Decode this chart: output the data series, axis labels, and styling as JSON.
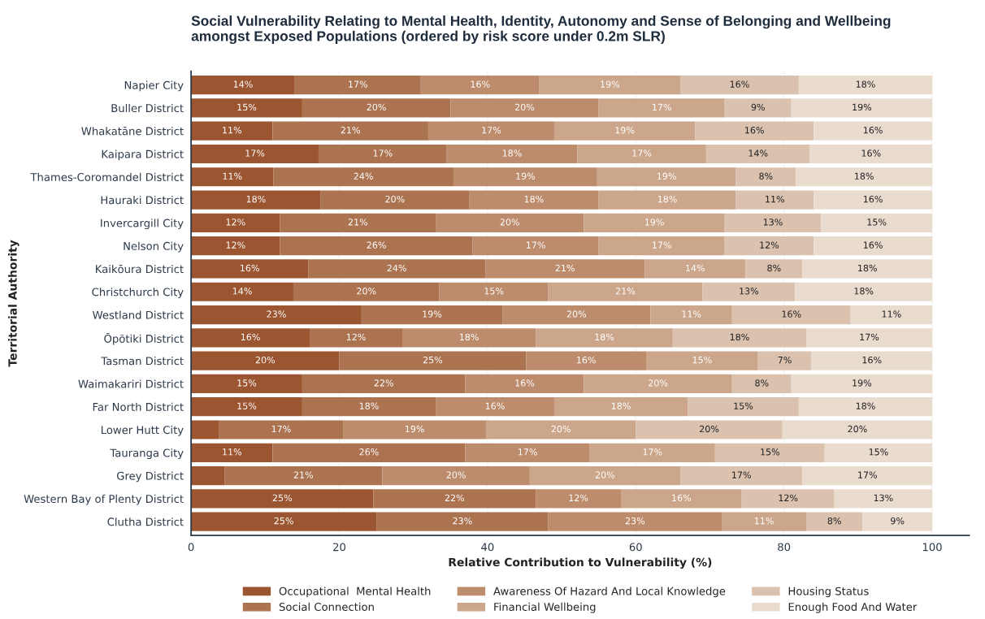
{
  "chart_data": {
    "type": "bar",
    "orientation": "horizontal",
    "stacked": true,
    "title": "Social Vulnerability Relating to Mental Health, Identity, Autonomy and Sense of Belonging and Wellbeing\namongst Exposed Populations (ordered by risk score under 0.2m SLR)",
    "xlabel": "Relative Contribution to Vulnerability (%)",
    "ylabel": "Territorial Authority",
    "categories": [
      "Napier City",
      "Buller District",
      "Whakatāne District",
      "Kaipara District",
      "Thames-Coromandel District",
      "Hauraki District",
      "Invercargill City",
      "Nelson City",
      "Kaikōura District",
      "Christchurch City",
      "Westland District",
      "Ōpōtiki District",
      "Tasman District",
      "Waimakariri District",
      "Far North District",
      "Lower Hutt City",
      "Tauranga City",
      "Grey District",
      "Western Bay of Plenty District",
      "Clutha District"
    ],
    "xlim": [
      0,
      105
    ],
    "xticks": [
      0,
      20,
      40,
      60,
      80,
      100
    ],
    "grid": "x",
    "legend": "bottom",
    "series": [
      {
        "name": "Occupational  Mental Health",
        "color": "#9b5530",
        "values": [
          14,
          15,
          11,
          17.2,
          11.1,
          17.5,
          12,
          12,
          15.8,
          13.8,
          23,
          16,
          20,
          15,
          15,
          3.8,
          11,
          4.5,
          24.6,
          25
        ],
        "value_labels": [
          "14%",
          "15%",
          "11%",
          "17%",
          "11%",
          "18%",
          "12%",
          "12%",
          "16%",
          "14%",
          "23%",
          "16%",
          "20%",
          "15%",
          "15%",
          null,
          "11%",
          null,
          "25%",
          "25%"
        ]
      },
      {
        "name": "Social Connection",
        "color": "#ac7350",
        "values": [
          17,
          20,
          21,
          17.3,
          24.3,
          20,
          21,
          26,
          23.9,
          19.7,
          19,
          12.5,
          25.2,
          22,
          18,
          16.7,
          26,
          21.3,
          21.9,
          23.2
        ],
        "value_labels": [
          "17%",
          "20%",
          "21%",
          "17%",
          "24%",
          "20%",
          "21%",
          "26%",
          "24%",
          "20%",
          "19%",
          "12%",
          "25%",
          "22%",
          "18%",
          "17%",
          "26%",
          "21%",
          "22%",
          "23%"
        ]
      },
      {
        "name": "Awareness Of Hazard And Local Knowledge",
        "color": "#bd8c6c",
        "values": [
          16,
          20,
          17,
          17.6,
          19.4,
          17.5,
          20,
          17,
          21.5,
          14.7,
          20,
          18,
          16.2,
          16,
          16,
          19.3,
          16.8,
          19.9,
          11.5,
          23.4
        ],
        "value_labels": [
          "16%",
          "20%",
          "17%",
          "18%",
          "19%",
          "18%",
          "20%",
          "17%",
          "21%",
          "15%",
          "20%",
          "18%",
          "16%",
          "16%",
          "16%",
          "19%",
          "17%",
          "20%",
          "12%",
          "23%"
        ]
      },
      {
        "name": "Financial Wellbeing",
        "color": "#cca68a",
        "values": [
          19,
          17,
          19,
          17.4,
          18.7,
          18.5,
          19,
          17,
          13.6,
          20.8,
          11,
          18.5,
          15.1,
          20,
          18,
          20.2,
          16.9,
          20.3,
          16.3,
          11.4
        ],
        "value_labels": [
          "19%",
          "17%",
          "19%",
          "17%",
          "19%",
          "18%",
          "19%",
          "17%",
          "14%",
          "21%",
          "11%",
          "18%",
          "15%",
          "20%",
          "18%",
          "20%",
          "17%",
          "20%",
          "16%",
          "11%"
        ]
      },
      {
        "name": "Housing Status",
        "color": "#dbc2af",
        "values": [
          16,
          9,
          16,
          14,
          8.1,
          10.5,
          13,
          12,
          7.7,
          12.5,
          16,
          18,
          7.2,
          8,
          15,
          19.8,
          14.8,
          16.5,
          12.5,
          7.6
        ],
        "value_labels": [
          "16%",
          "9%",
          "16%",
          "14%",
          "8%",
          "11%",
          "13%",
          "12%",
          "8%",
          "13%",
          "16%",
          "18%",
          "7%",
          "8%",
          "15%",
          "20%",
          "15%",
          "17%",
          "12%",
          "8%"
        ]
      },
      {
        "name": "Enough Food And Water",
        "color": "#eadbcf",
        "values": [
          18,
          19,
          16,
          16.5,
          18.4,
          16,
          15,
          16,
          17.5,
          18.5,
          11,
          17,
          16.3,
          19,
          18,
          20.2,
          14.5,
          17.5,
          13.2,
          9.4
        ],
        "value_labels": [
          "18%",
          "19%",
          "16%",
          "16%",
          "18%",
          "16%",
          "15%",
          "16%",
          "18%",
          "18%",
          "11%",
          "17%",
          "16%",
          "19%",
          "18%",
          "20%",
          "15%",
          "17%",
          "13%",
          "9%"
        ]
      }
    ]
  }
}
